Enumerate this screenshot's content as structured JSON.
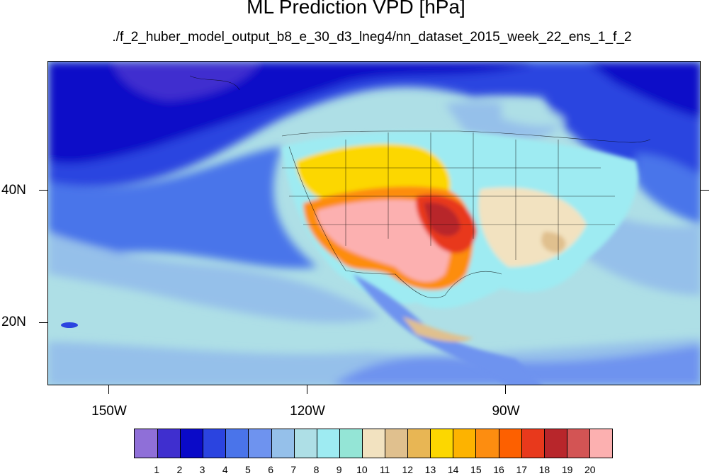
{
  "header": {
    "title": "ML Prediction VPD [hPa]",
    "subtitle": "./f_2_huber_model_output_b8_e_30_d3_lneg4/nn_dataset_2015_week_22_ens_1_f_2"
  },
  "axes": {
    "lon_labels": [
      "150W",
      "120W",
      "90W"
    ],
    "lat_labels": [
      "40N",
      "20N"
    ]
  },
  "colorbar": {
    "labels": [
      "1",
      "2",
      "3",
      "4",
      "5",
      "6",
      "7",
      "8",
      "9",
      "10",
      "11",
      "12",
      "13",
      "14",
      "15",
      "16",
      "17",
      "18",
      "19",
      "20"
    ],
    "colors": [
      "#8f6fd8",
      "#3f2fcf",
      "#0a0ac8",
      "#2b44e0",
      "#4a74ea",
      "#6e93ef",
      "#95c0ea",
      "#aedfe6",
      "#9eebf2",
      "#94e5d6",
      "#f2e2c0",
      "#e0c08e",
      "#e8b654",
      "#fcd700",
      "#fdb300",
      "#fd8d10",
      "#fd6000",
      "#e8391c",
      "#b8262b",
      "#d35454",
      "#fcb0b0"
    ]
  }
}
